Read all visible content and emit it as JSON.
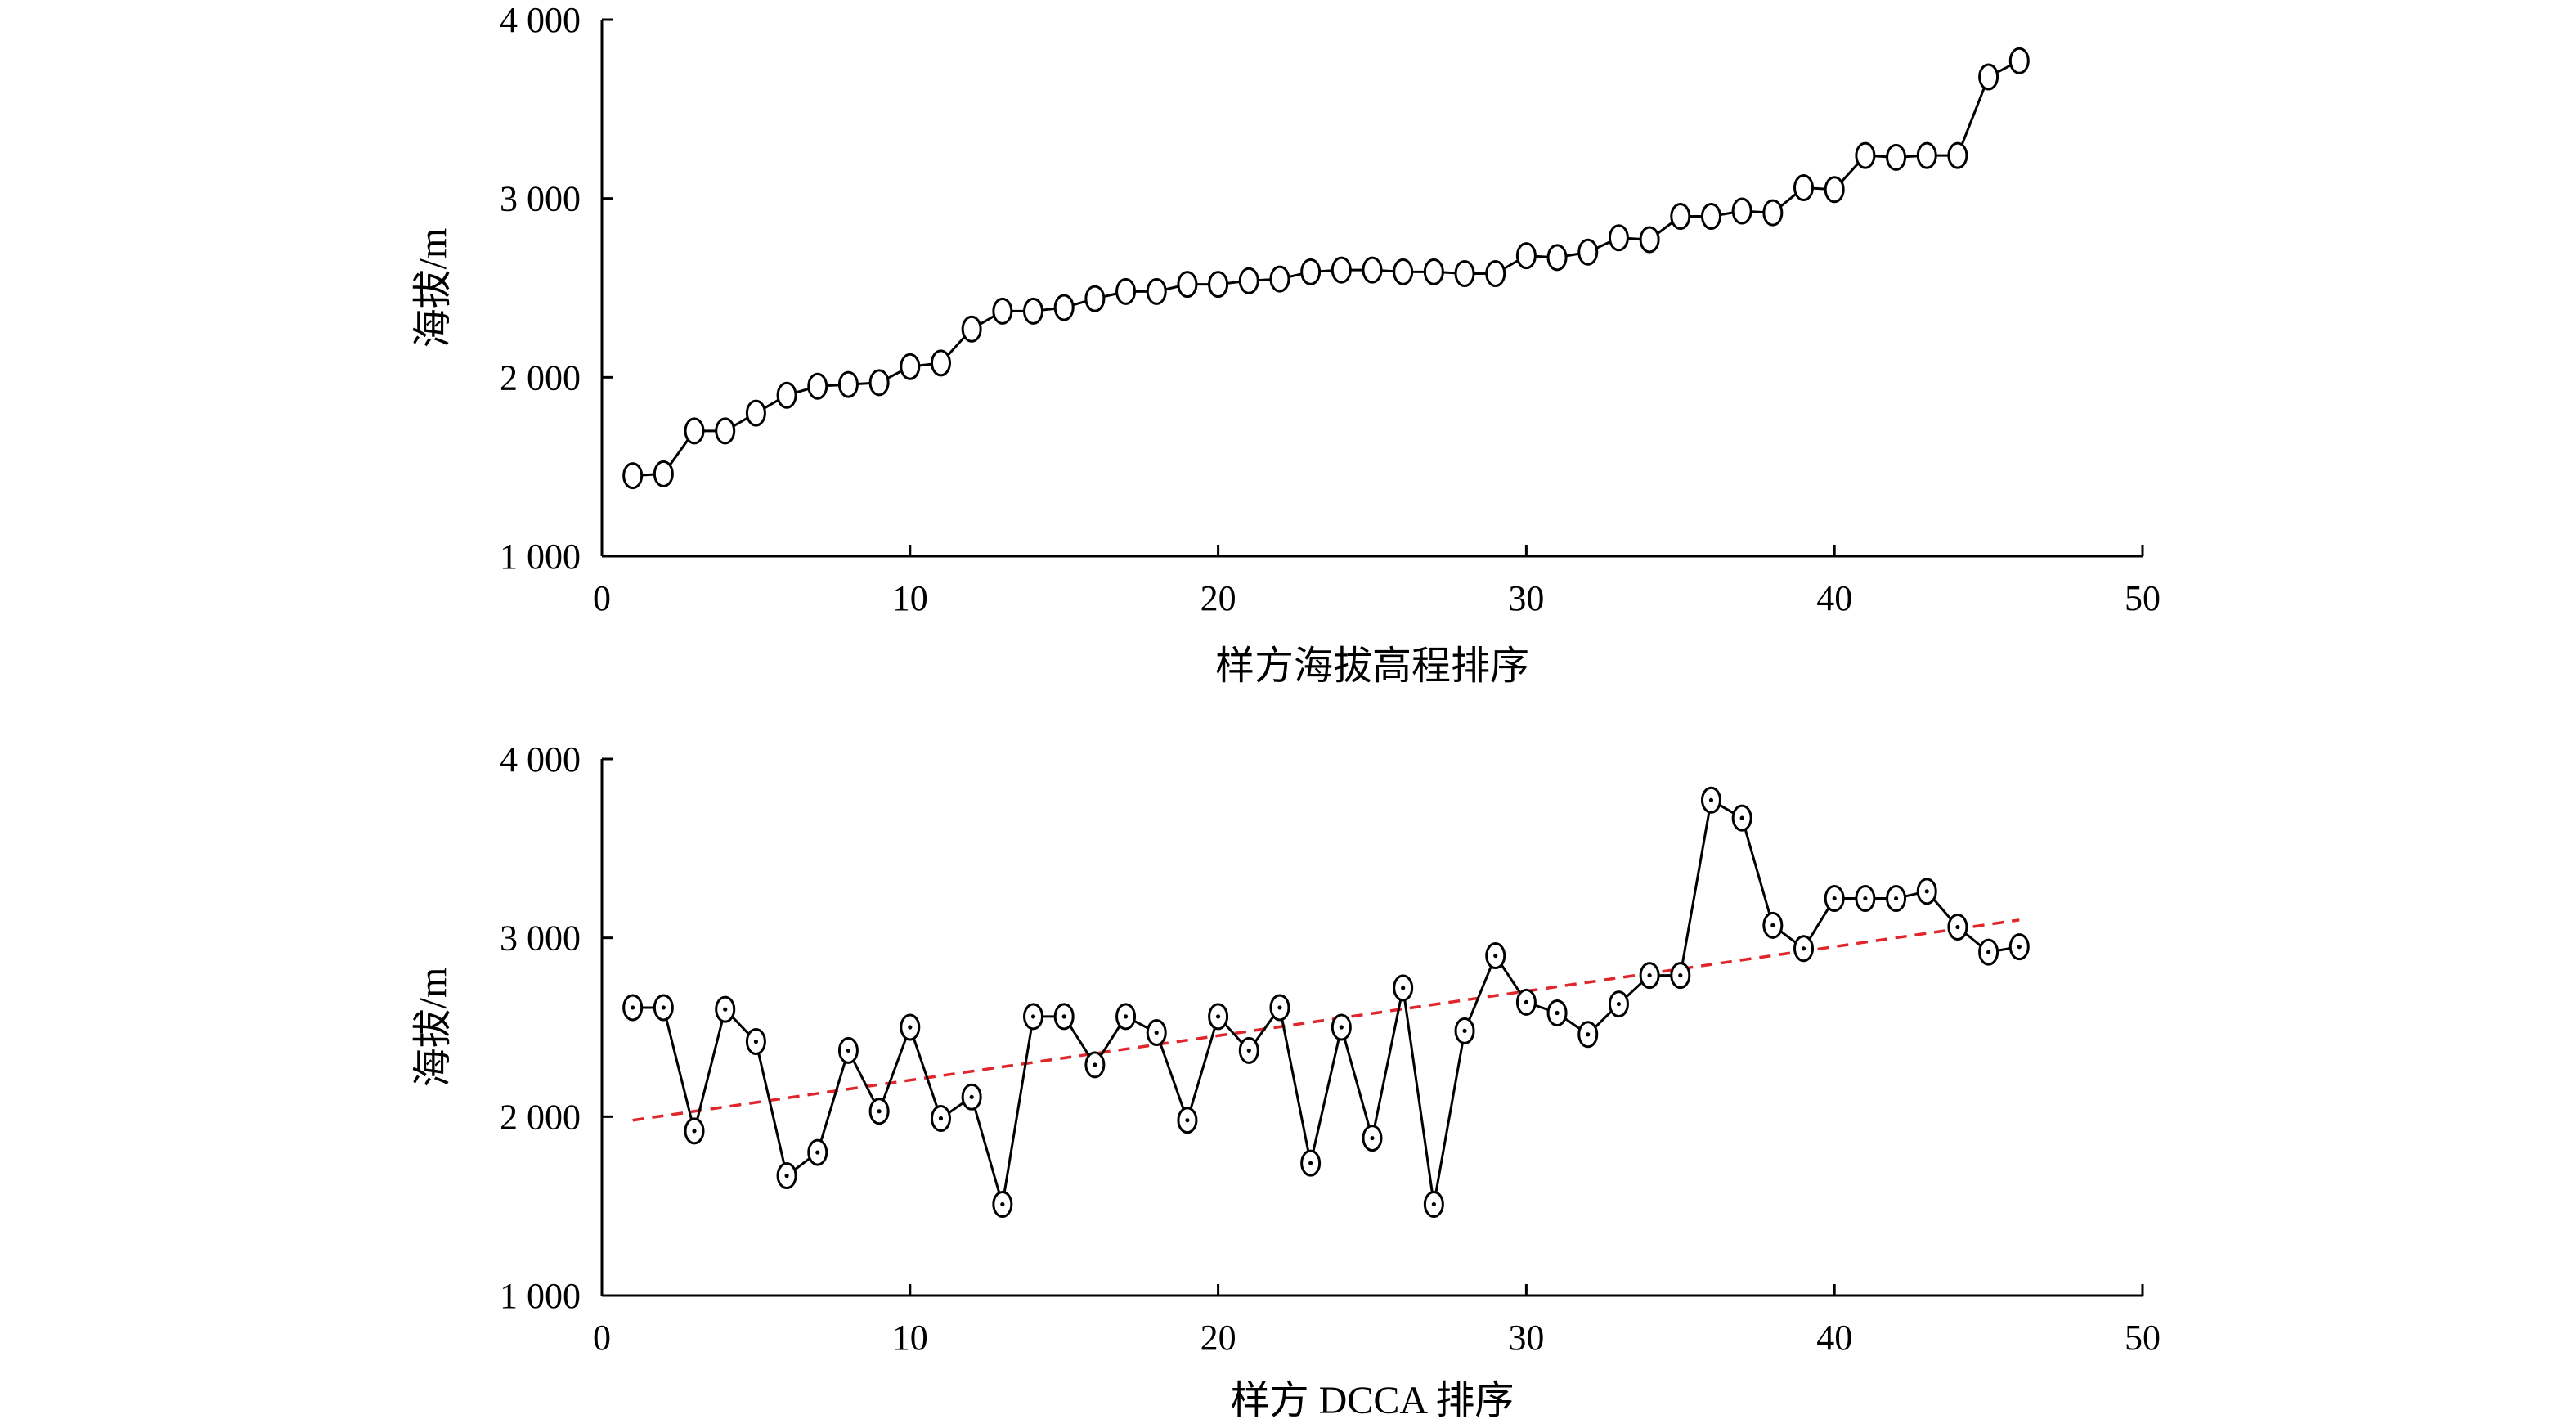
{
  "chart_data": [
    {
      "type": "line",
      "xlabel": "样方海拔高程排序",
      "ylabel": "海拔/m",
      "xlim": [
        0,
        50
      ],
      "ylim": [
        1000,
        4000
      ],
      "xticks": [
        0,
        10,
        20,
        30,
        40,
        50
      ],
      "yticks": [
        1000,
        2000,
        3000,
        4000
      ],
      "xtick_labels": [
        "0",
        "10",
        "20",
        "30",
        "40",
        "50"
      ],
      "ytick_labels": [
        "1 000",
        "2 000",
        "3 000",
        "4 000"
      ],
      "grid": false,
      "marker": "open-circle",
      "series": [
        {
          "x": [
            1,
            2,
            3,
            4,
            5,
            6,
            7,
            8,
            9,
            10,
            11,
            12,
            13,
            14,
            15,
            16,
            17,
            18,
            19,
            20,
            21,
            22,
            23,
            24,
            25,
            26,
            27,
            28,
            29,
            30,
            31,
            32,
            33,
            34,
            35,
            36,
            37,
            38,
            39,
            40,
            41,
            42,
            43,
            44,
            45,
            46
          ],
          "y": [
            1450,
            1460,
            1700,
            1700,
            1800,
            1900,
            1950,
            1960,
            1970,
            2060,
            2080,
            2270,
            2370,
            2370,
            2390,
            2440,
            2480,
            2480,
            2520,
            2520,
            2540,
            2550,
            2590,
            2600,
            2600,
            2590,
            2590,
            2580,
            2580,
            2680,
            2670,
            2700,
            2780,
            2770,
            2900,
            2900,
            2930,
            2920,
            3060,
            3050,
            3240,
            3230,
            3240,
            3240,
            3680,
            3770
          ]
        }
      ]
    },
    {
      "type": "line",
      "xlabel": "样方 DCCA 排序",
      "ylabel": "海拔/m",
      "xlim": [
        0,
        50
      ],
      "ylim": [
        1000,
        4000
      ],
      "xticks": [
        0,
        10,
        20,
        30,
        40,
        50
      ],
      "yticks": [
        1000,
        2000,
        3000,
        4000
      ],
      "xtick_labels": [
        "0",
        "10",
        "20",
        "30",
        "40",
        "50"
      ],
      "ytick_labels": [
        "1 000",
        "2 000",
        "3 000",
        "4 000"
      ],
      "grid": false,
      "marker": "open-circle-with-dot",
      "trendline": {
        "x": [
          1,
          46
        ],
        "y": [
          1980,
          3100
        ],
        "color": "#e0262b",
        "style": "dashed"
      },
      "series": [
        {
          "x": [
            1,
            2,
            3,
            4,
            5,
            6,
            7,
            8,
            9,
            10,
            11,
            12,
            13,
            14,
            15,
            16,
            17,
            18,
            19,
            20,
            21,
            22,
            23,
            24,
            25,
            26,
            27,
            28,
            29,
            30,
            31,
            32,
            33,
            34,
            35,
            36,
            37,
            38,
            39,
            40,
            41,
            42,
            43,
            44,
            45,
            46
          ],
          "y": [
            2610,
            2610,
            1920,
            2600,
            2420,
            1670,
            1800,
            2370,
            2030,
            2500,
            1990,
            2110,
            1510,
            2560,
            2560,
            2290,
            2560,
            2470,
            1980,
            2560,
            2370,
            2610,
            1740,
            2500,
            1880,
            2720,
            1510,
            2480,
            2900,
            2640,
            2580,
            2460,
            2630,
            2790,
            2790,
            3770,
            3670,
            3070,
            2940,
            3220,
            3220,
            3220,
            3260,
            3060,
            2920,
            2950
          ]
        }
      ]
    }
  ]
}
